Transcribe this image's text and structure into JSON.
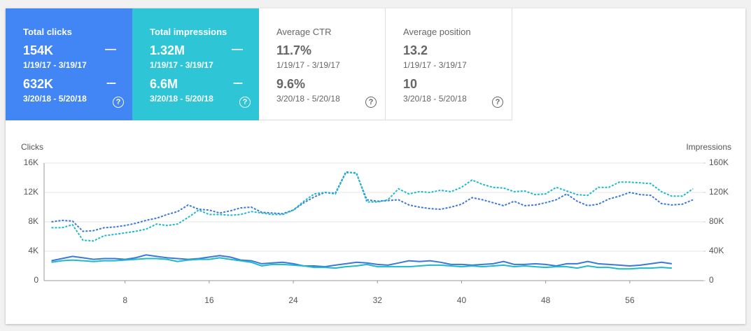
{
  "cards": [
    {
      "label": "Total clicks",
      "periods": [
        {
          "value": "154K",
          "dates": "1/19/17 - 3/19/17"
        },
        {
          "value": "632K",
          "dates": "3/20/18 - 5/20/18"
        }
      ]
    },
    {
      "label": "Total impressions",
      "periods": [
        {
          "value": "1.32M",
          "dates": "1/19/17 - 3/19/17"
        },
        {
          "value": "6.6M",
          "dates": "3/20/18 - 5/20/18"
        }
      ]
    },
    {
      "label": "Average CTR",
      "periods": [
        {
          "value": "11.7%",
          "dates": "1/19/17 - 3/19/17"
        },
        {
          "value": "9.6%",
          "dates": "3/20/18 - 5/20/18"
        }
      ]
    },
    {
      "label": "Average position",
      "periods": [
        {
          "value": "13.2",
          "dates": "1/19/17 - 3/19/17"
        },
        {
          "value": "10",
          "dates": "3/20/18 - 5/20/18"
        }
      ]
    }
  ],
  "chart_data": {
    "type": "line",
    "y_label": "Clicks",
    "y2_label": "Impressions",
    "x": [
      1,
      2,
      3,
      4,
      5,
      6,
      7,
      8,
      9,
      10,
      11,
      12,
      13,
      14,
      15,
      16,
      17,
      18,
      19,
      20,
      21,
      22,
      23,
      24,
      25,
      26,
      27,
      28,
      29,
      30,
      31,
      32,
      33,
      34,
      35,
      36,
      37,
      38,
      39,
      40,
      41,
      42,
      43,
      44,
      45,
      46,
      47,
      48,
      49,
      50,
      51,
      52,
      53,
      54,
      55,
      56,
      57,
      58,
      59,
      60,
      61,
      62
    ],
    "xlim": [
      0.3,
      63
    ],
    "xticks": [
      8,
      16,
      24,
      32,
      40,
      48,
      56
    ],
    "ylim": [
      0,
      16000
    ],
    "yticks": [
      0,
      {
        "value": 4000,
        "label": "4K"
      },
      {
        "value": 8000,
        "label": "8K"
      },
      {
        "value": 12000,
        "label": "12K"
      },
      {
        "value": 16000,
        "label": "16K"
      }
    ],
    "y2lim": [
      0,
      160000
    ],
    "y2ticks": [
      0,
      {
        "value": 40000,
        "label": "40K"
      },
      {
        "value": 80000,
        "label": "80K"
      },
      {
        "value": 120000,
        "label": "120K"
      },
      {
        "value": 160000,
        "label": "160K"
      }
    ],
    "grid": true,
    "series": [
      {
        "color": "#3d78d8",
        "dashed": true,
        "values": [
          8000,
          8200,
          8100,
          6700,
          6800,
          7200,
          7300,
          7500,
          7800,
          8200,
          8500,
          9000,
          9400,
          10300,
          9700,
          9600,
          9200,
          9500,
          9900,
          10000,
          9300,
          9200,
          9100,
          9600,
          10600,
          11400,
          12000,
          11900,
          14800,
          14600,
          11000,
          10800,
          10900,
          11000,
          10300,
          10000,
          9800,
          9700,
          10000,
          10400,
          11300,
          11000,
          10600,
          10200,
          10800,
          10200,
          10300,
          10600,
          11000,
          11800,
          10800,
          10200,
          10400,
          11100,
          11500,
          12000,
          11700,
          11600,
          10500,
          10300,
          10400,
          11000
        ]
      },
      {
        "color": "#1fb9cc",
        "dashed": true,
        "axis": "y2",
        "values": [
          72000,
          72000,
          76000,
          55000,
          54000,
          61000,
          63000,
          65000,
          67000,
          70000,
          77000,
          75000,
          77000,
          86000,
          96000,
          90000,
          90000,
          89000,
          90000,
          94000,
          92000,
          90000,
          90000,
          96000,
          108000,
          118000,
          120000,
          118000,
          147000,
          147000,
          107000,
          107000,
          110000,
          125000,
          118000,
          121000,
          120000,
          123000,
          121000,
          127000,
          137000,
          131000,
          127000,
          126000,
          121000,
          122000,
          117000,
          118000,
          127000,
          122000,
          117000,
          116000,
          127000,
          127000,
          134000,
          134000,
          133000,
          132000,
          121000,
          115000,
          115000,
          125000
        ]
      },
      {
        "color": "#3d78d8",
        "dashed": false,
        "values": [
          2700,
          3000,
          3300,
          3100,
          2900,
          3000,
          3000,
          2900,
          3100,
          3500,
          3300,
          3100,
          3000,
          2900,
          3000,
          3200,
          3400,
          3200,
          2800,
          2700,
          2300,
          2400,
          2500,
          2300,
          2000,
          2000,
          1900,
          2100,
          2300,
          2500,
          2400,
          2200,
          2100,
          2400,
          2700,
          2600,
          2700,
          2500,
          2200,
          2200,
          2100,
          2200,
          2300,
          2600,
          2200,
          2200,
          2300,
          2200,
          2000,
          2300,
          2300,
          2600,
          2300,
          2200,
          2100,
          2000,
          2100,
          2300,
          2500,
          2300,
          null,
          null
        ]
      },
      {
        "color": "#1fb9cc",
        "dashed": false,
        "axis": "y2",
        "values": [
          25000,
          27000,
          28000,
          27000,
          26000,
          27000,
          27000,
          28000,
          29000,
          30000,
          30000,
          29000,
          26000,
          28000,
          29000,
          29000,
          31000,
          29000,
          27000,
          25000,
          20000,
          22000,
          22000,
          21000,
          20000,
          18000,
          18000,
          17000,
          19000,
          20000,
          22000,
          19000,
          19000,
          19000,
          19000,
          20000,
          21000,
          21000,
          20000,
          19000,
          20000,
          19000,
          20000,
          21000,
          19000,
          20000,
          19000,
          18000,
          19000,
          19000,
          17000,
          20000,
          18000,
          18000,
          16000,
          16000,
          17000,
          17000,
          18000,
          17000,
          null,
          null
        ]
      }
    ]
  }
}
